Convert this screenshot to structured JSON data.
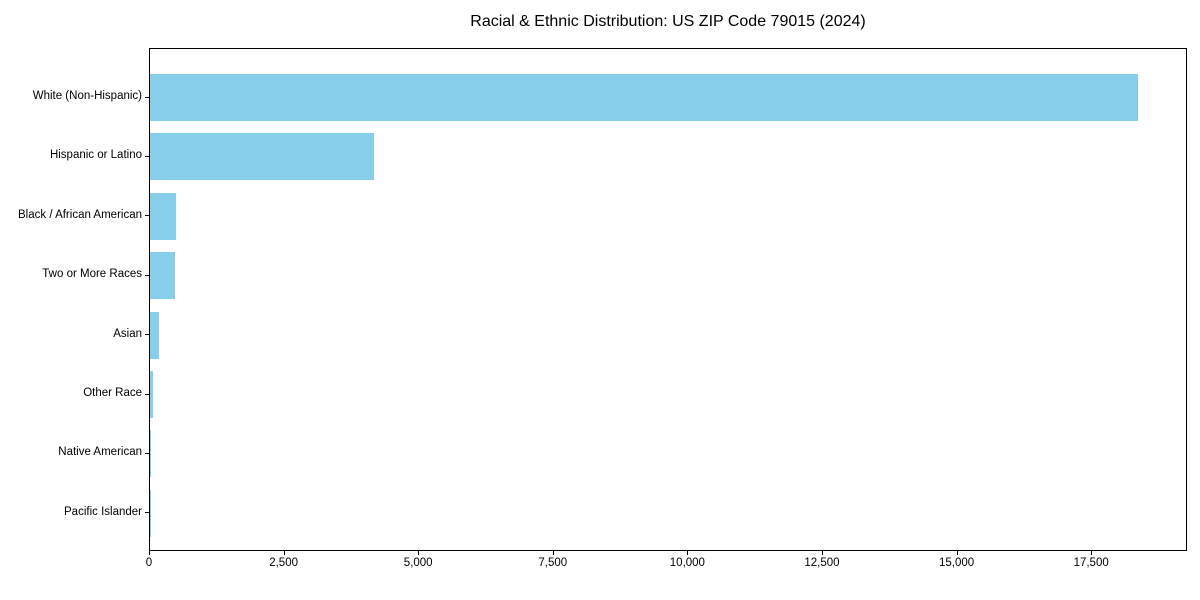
{
  "chart_data": {
    "type": "bar",
    "orientation": "horizontal",
    "title": "Racial & Ethnic Distribution: US ZIP Code 79015 (2024)",
    "xlabel": "",
    "ylabel": "",
    "categories": [
      "White (Non-Hispanic)",
      "Hispanic or Latino",
      "Black / African American",
      "Two or More Races",
      "Asian",
      "Other Race",
      "Native American",
      "Pacific Islander"
    ],
    "values": [
      18360,
      4165,
      485,
      470,
      175,
      60,
      25,
      5
    ],
    "xlim": [
      0,
      19280
    ],
    "xticks": [
      0,
      2500,
      5000,
      7500,
      10000,
      12500,
      15000,
      17500
    ],
    "bar_color": "#87CEEB",
    "text_color": "#000000",
    "grid": false,
    "legend": null
  }
}
